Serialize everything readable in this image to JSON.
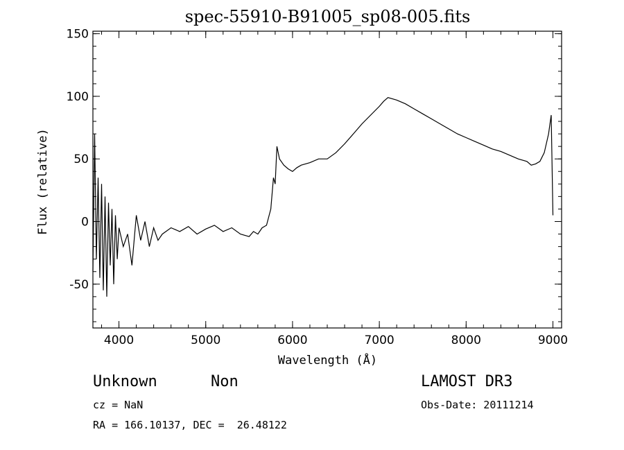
{
  "chart_data": {
    "type": "line",
    "title": "spec-55910-B91005_sp08-005.fits",
    "xlabel": "Wavelength (Å)",
    "ylabel": "Flux (relative)",
    "xlim": [
      3700,
      9100
    ],
    "ylim": [
      -85,
      152
    ],
    "xticks": [
      4000,
      5000,
      6000,
      7000,
      8000,
      9000
    ],
    "yticks": [
      -50,
      0,
      50,
      100,
      150
    ],
    "x_minor_step": 200,
    "y_minor_step": 10,
    "series": [
      {
        "color": "#000000",
        "x": [
          3700,
          3720,
          3740,
          3760,
          3780,
          3800,
          3820,
          3840,
          3860,
          3880,
          3900,
          3920,
          3940,
          3960,
          3980,
          4000,
          4050,
          4100,
          4150,
          4200,
          4250,
          4300,
          4350,
          4400,
          4450,
          4500,
          4600,
          4700,
          4800,
          4900,
          5000,
          5100,
          5200,
          5300,
          5400,
          5500,
          5550,
          5600,
          5650,
          5700,
          5750,
          5780,
          5800,
          5820,
          5850,
          5900,
          5950,
          6000,
          6050,
          6100,
          6200,
          6300,
          6400,
          6500,
          6600,
          6700,
          6800,
          6900,
          7000,
          7050,
          7100,
          7200,
          7300,
          7400,
          7500,
          7600,
          7700,
          7800,
          7900,
          8000,
          8100,
          8200,
          8300,
          8400,
          8500,
          8600,
          8700,
          8750,
          8800,
          8850,
          8900,
          8950,
          8980,
          9000
        ],
        "y": [
          -40,
          70,
          -30,
          35,
          -45,
          30,
          -55,
          20,
          -60,
          15,
          -35,
          10,
          -50,
          5,
          -30,
          -5,
          -20,
          -10,
          -35,
          5,
          -15,
          0,
          -20,
          -5,
          -15,
          -10,
          -5,
          -8,
          -4,
          -10,
          -6,
          -3,
          -8,
          -5,
          -10,
          -12,
          -8,
          -10,
          -5,
          -3,
          10,
          35,
          30,
          60,
          50,
          45,
          42,
          40,
          43,
          45,
          47,
          50,
          50,
          55,
          62,
          70,
          78,
          85,
          92,
          96,
          99,
          97,
          94,
          90,
          86,
          82,
          78,
          74,
          70,
          67,
          64,
          61,
          58,
          56,
          53,
          50,
          48,
          45,
          46,
          48,
          55,
          70,
          85,
          5
        ]
      }
    ]
  },
  "footer": {
    "object_class": "Unknown",
    "subclass": "Non",
    "survey": "LAMOST DR3",
    "redshift": "cz = NaN",
    "obs_date": "Obs-Date: 20111214",
    "coords": "RA = 166.10137, DEC =  26.48122"
  }
}
